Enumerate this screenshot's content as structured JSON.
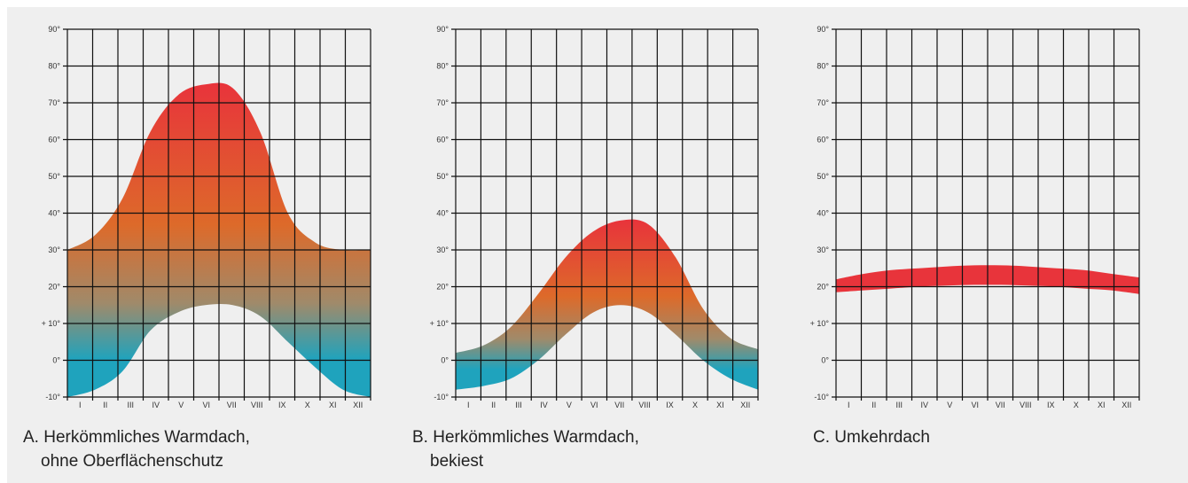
{
  "chart_data": [
    {
      "type": "area",
      "caption": [
        "A. Herkömmliches Warmdach,",
        "ohne Oberflächenschutz"
      ],
      "x": [
        "I",
        "II",
        "III",
        "IV",
        "V",
        "VI",
        "VII",
        "VIII",
        "IX",
        "X",
        "XI",
        "XII"
      ],
      "y_ticks": [
        "90°",
        "80°",
        "70°",
        "60°",
        "50°",
        "40°",
        "30°",
        "20°",
        "+ 10°",
        "0°",
        "-10°"
      ],
      "ylim": [
        -10,
        90
      ],
      "gradient": true,
      "series": [
        {
          "role": "upper",
          "values": [
            30,
            34,
            44,
            62,
            72,
            75,
            74,
            62,
            40,
            32,
            30,
            30
          ]
        },
        {
          "role": "lower",
          "values": [
            -10,
            -8,
            -3,
            8,
            13,
            15,
            15,
            12,
            5,
            -2,
            -8,
            -10
          ]
        }
      ]
    },
    {
      "type": "area",
      "caption": [
        "B. Herkömmliches Warmdach,",
        "bekiest"
      ],
      "x": [
        "I",
        "II",
        "III",
        "IV",
        "V",
        "VI",
        "VII",
        "VIII",
        "IX",
        "X",
        "XI",
        "XII"
      ],
      "y_ticks": [
        "90°",
        "80°",
        "70°",
        "60°",
        "50°",
        "40°",
        "30°",
        "20°",
        "+ 10°",
        "0°",
        "-10°"
      ],
      "ylim": [
        -10,
        90
      ],
      "gradient": true,
      "series": [
        {
          "role": "upper",
          "values": [
            2,
            4,
            9,
            18,
            28,
            35,
            38,
            37,
            28,
            14,
            6,
            3
          ]
        },
        {
          "role": "lower",
          "values": [
            -8,
            -7,
            -5,
            0,
            7,
            13,
            15,
            13,
            7,
            0,
            -5,
            -8
          ]
        }
      ]
    },
    {
      "type": "area",
      "caption": [
        "C. Umkehrdach"
      ],
      "x": [
        "I",
        "II",
        "III",
        "IV",
        "V",
        "VI",
        "VII",
        "VIII",
        "IX",
        "X",
        "XI",
        "XII"
      ],
      "y_ticks": [
        "90°",
        "80°",
        "70°",
        "60°",
        "50°",
        "40°",
        "30°",
        "20°",
        "+ 10°",
        "0°",
        "-10°"
      ],
      "ylim": [
        -10,
        90
      ],
      "gradient": false,
      "color": "#e8343b",
      "series": [
        {
          "role": "upper",
          "values": [
            22,
            23.5,
            24.5,
            25,
            25.5,
            25.8,
            25.8,
            25.5,
            25,
            24.5,
            23.5,
            22.5
          ]
        },
        {
          "role": "lower",
          "values": [
            18.5,
            19,
            19.5,
            20,
            20.3,
            20.5,
            20.5,
            20.3,
            20,
            19.5,
            19,
            18
          ]
        }
      ]
    }
  ],
  "colors": {
    "hot": "#e8343b",
    "warm": "#dd6a2a",
    "neutral": "#a08a6a",
    "cold": "#1fa3bd",
    "grid": "#111111",
    "background": "#efefef"
  }
}
